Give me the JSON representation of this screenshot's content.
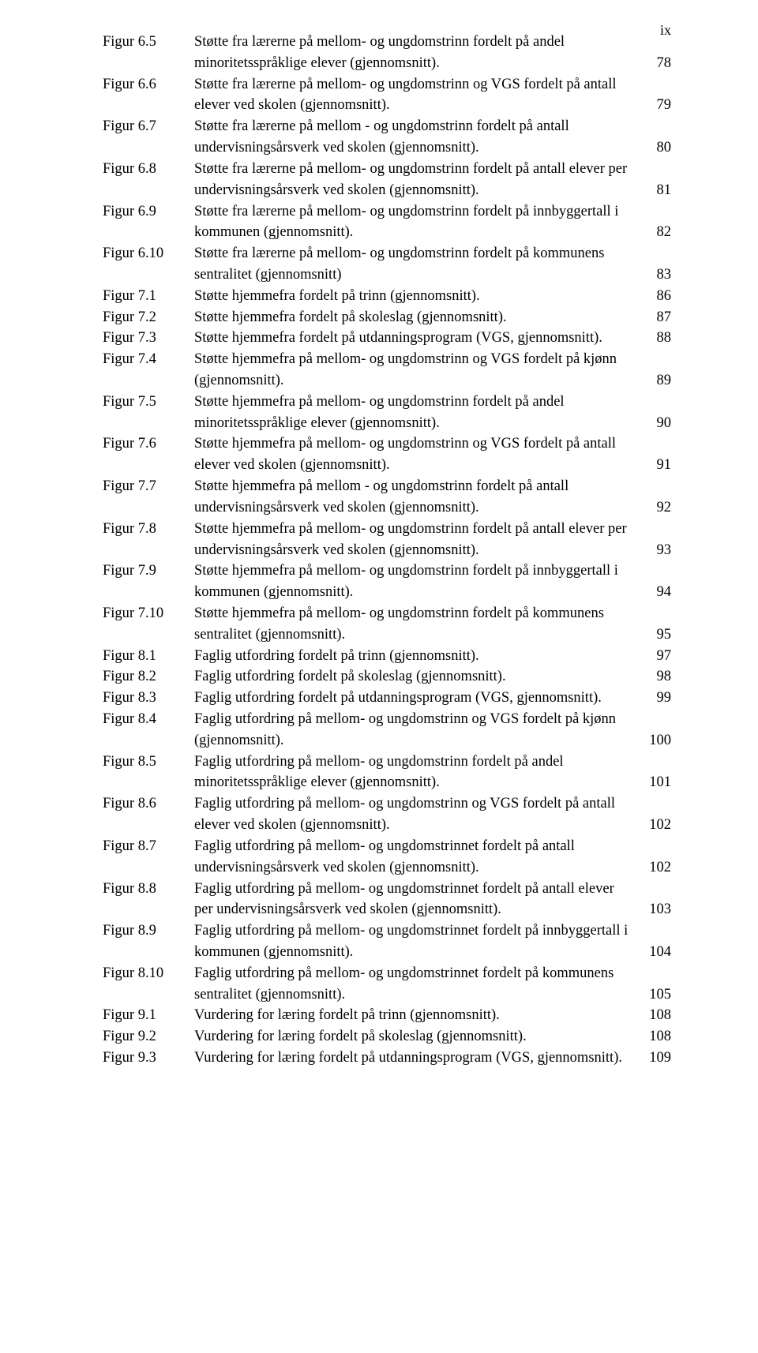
{
  "page_number_label": "ix",
  "entries": [
    {
      "key": "Figur 6.5",
      "desc": "Støtte fra lærerne på mellom- og ungdomstrinn fordelt på andel minoritetsspråklige elever (gjennomsnitt).",
      "page": "78"
    },
    {
      "key": "Figur 6.6",
      "desc": "Støtte fra lærerne på mellom- og ungdomstrinn og VGS fordelt på antall elever ved skolen (gjennomsnitt).",
      "page": "79"
    },
    {
      "key": "Figur 6.7",
      "desc": "Støtte fra lærerne på mellom - og ungdomstrinn fordelt på antall undervisningsårsverk ved skolen (gjennomsnitt).",
      "page": "80"
    },
    {
      "key": "Figur 6.8",
      "desc": "Støtte fra lærerne på mellom- og ungdomstrinn fordelt på antall elever per undervisningsårsverk ved skolen (gjennomsnitt).",
      "page": "81"
    },
    {
      "key": "Figur 6.9",
      "desc": "Støtte fra lærerne på mellom- og ungdomstrinn fordelt på innbyggertall i kommunen (gjennomsnitt).",
      "page": "82"
    },
    {
      "key": "Figur 6.10",
      "desc": "Støtte fra lærerne på mellom- og ungdomstrinn fordelt på kommunens sentralitet (gjennomsnitt)",
      "page": "83"
    },
    {
      "key": "Figur 7.1",
      "desc": "Støtte hjemmefra fordelt på trinn (gjennomsnitt).",
      "page": "86"
    },
    {
      "key": "Figur 7.2",
      "desc": "Støtte hjemmefra fordelt på skoleslag (gjennomsnitt).",
      "page": "87"
    },
    {
      "key": "Figur 7.3",
      "desc": "Støtte hjemmefra fordelt på utdanningsprogram (VGS, gjennomsnitt).",
      "page": "88"
    },
    {
      "key": "Figur 7.4",
      "desc": "Støtte hjemmefra på mellom- og ungdomstrinn og VGS fordelt på kjønn (gjennomsnitt).",
      "page": "89"
    },
    {
      "key": "Figur 7.5",
      "desc": "Støtte hjemmefra på mellom- og ungdomstrinn fordelt på andel minoritetsspråklige elever (gjennomsnitt).",
      "page": "90"
    },
    {
      "key": "Figur 7.6",
      "desc": "Støtte hjemmefra på mellom- og ungdomstrinn og VGS fordelt på antall elever ved skolen (gjennomsnitt).",
      "page": "91"
    },
    {
      "key": "Figur 7.7",
      "desc": "Støtte hjemmefra på mellom - og ungdomstrinn fordelt på antall undervisningsårsverk ved skolen (gjennomsnitt).",
      "page": "92"
    },
    {
      "key": "Figur 7.8",
      "desc": "Støtte hjemmefra på mellom- og ungdomstrinn fordelt på antall elever per undervisningsårsverk ved skolen (gjennomsnitt).",
      "page": "93"
    },
    {
      "key": "Figur 7.9",
      "desc": "Støtte hjemmefra på mellom- og ungdomstrinn fordelt på innbyggertall i kommunen (gjennomsnitt).",
      "page": "94"
    },
    {
      "key": "Figur 7.10",
      "desc": "Støtte hjemmefra på mellom- og ungdomstrinn fordelt på kommunens sentralitet (gjennomsnitt).",
      "page": "95"
    },
    {
      "key": "Figur 8.1",
      "desc": "Faglig utfordring fordelt på trinn (gjennomsnitt).",
      "page": "97"
    },
    {
      "key": "Figur 8.2",
      "desc": "Faglig utfordring fordelt på skoleslag (gjennomsnitt).",
      "page": "98"
    },
    {
      "key": "Figur 8.3",
      "desc": "Faglig utfordring fordelt på utdanningsprogram (VGS, gjennomsnitt).",
      "page": "99"
    },
    {
      "key": "Figur 8.4",
      "desc": "Faglig utfordring på mellom- og ungdomstrinn og VGS fordelt på kjønn (gjennomsnitt).",
      "page": "100"
    },
    {
      "key": "Figur 8.5",
      "desc": "Faglig utfordring på mellom- og ungdomstrinn fordelt på andel minoritetsspråklige elever (gjennomsnitt).",
      "page": "101"
    },
    {
      "key": "Figur 8.6",
      "desc": "Faglig utfordring på mellom- og ungdomstrinn og VGS fordelt på antall elever ved skolen (gjennomsnitt).",
      "page": "102"
    },
    {
      "key": "Figur 8.7",
      "desc": "Faglig utfordring på mellom- og ungdomstrinnet fordelt på antall undervisningsårsverk ved skolen (gjennomsnitt).",
      "page": "102"
    },
    {
      "key": "Figur 8.8",
      "desc": "Faglig utfordring på mellom- og ungdomstrinnet fordelt på antall elever per undervisningsårsverk ved skolen (gjennomsnitt).",
      "page": "103"
    },
    {
      "key": "Figur 8.9",
      "desc": "Faglig utfordring på mellom- og ungdomstrinnet fordelt på innbyggertall i kommunen (gjennomsnitt).",
      "page": "104"
    },
    {
      "key": "Figur 8.10",
      "desc": "Faglig utfordring på mellom- og ungdomstrinnet fordelt på kommunens sentralitet (gjennomsnitt).",
      "page": "105"
    },
    {
      "key": "Figur 9.1",
      "desc": "Vurdering for læring fordelt på trinn (gjennomsnitt).",
      "page": "108"
    },
    {
      "key": "Figur 9.2",
      "desc": "Vurdering for læring fordelt på skoleslag (gjennomsnitt).",
      "page": "108"
    },
    {
      "key": "Figur 9.3",
      "desc": "Vurdering for læring fordelt på utdanningsprogram (VGS, gjennomsnitt).",
      "page": "109"
    }
  ]
}
